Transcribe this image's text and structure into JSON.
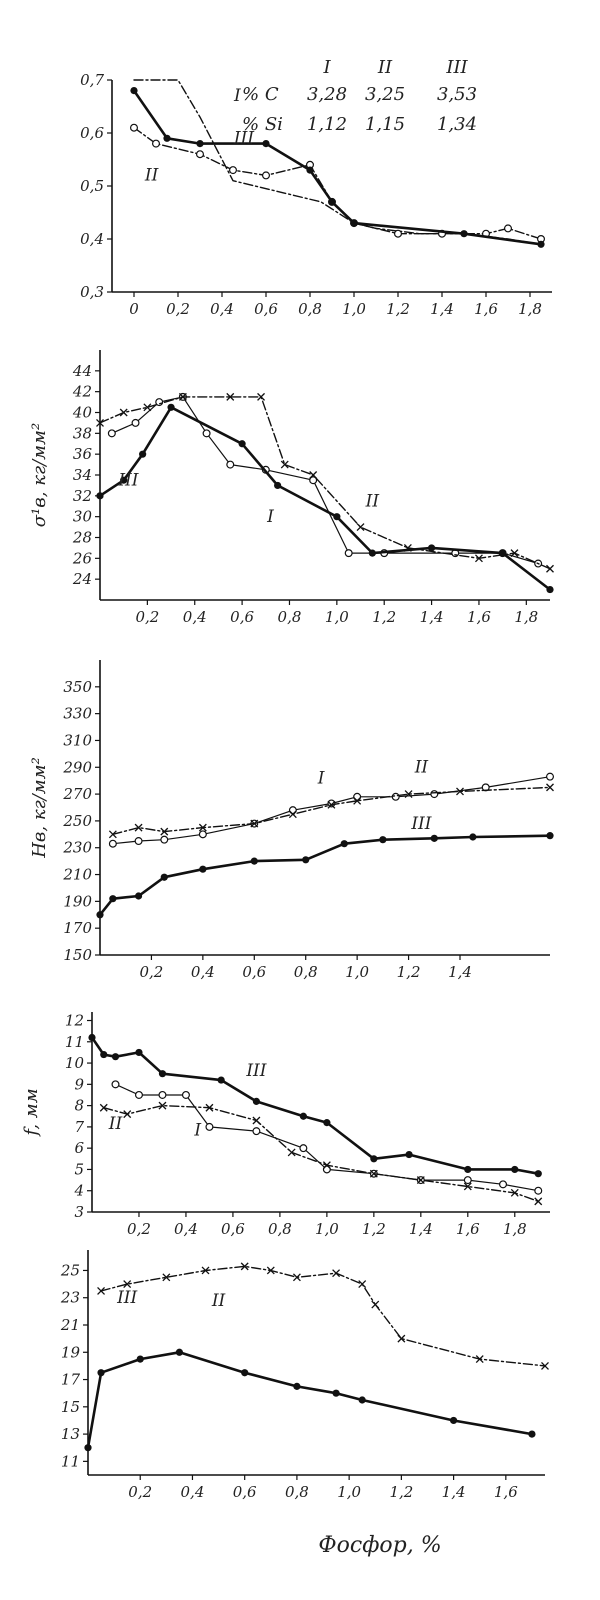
{
  "figure_xlabel": "Фосфор, %",
  "legend_table": {
    "rows": [
      {
        "id": "I",
        "c": "3,28",
        "si": "1,12"
      },
      {
        "id": "II",
        "c": "3,25",
        "si": "1,15"
      },
      {
        "id": "III",
        "c": "3,53",
        "si": "1,34"
      }
    ],
    "c_label": "% C",
    "si_label": "% Si"
  },
  "chart_data": [
    {
      "type": "line",
      "title": "",
      "ylabel": "",
      "xlim": [
        -0.1,
        1.9
      ],
      "ylim": [
        0.3,
        0.7
      ],
      "xticks": [
        "0",
        "0,2",
        "0,4",
        "0,6",
        "0,8",
        "1,0",
        "1,2",
        "1,4",
        "1,6",
        "1,8"
      ],
      "xtick_values": [
        0,
        0.2,
        0.4,
        0.6,
        0.8,
        1.0,
        1.2,
        1.4,
        1.6,
        1.8
      ],
      "yticks": [
        "0,7",
        "0,6",
        "0,5",
        "0,4",
        "0,3"
      ],
      "ytick_values": [
        0.7,
        0.6,
        0.5,
        0.4,
        0.3
      ],
      "curve_labels": [
        {
          "text": "I",
          "x": 0.47,
          "y": 0.66
        },
        {
          "text": "II",
          "x": 0.08,
          "y": 0.51
        },
        {
          "text": "III",
          "x": 0.5,
          "y": 0.58
        }
      ],
      "series": [
        {
          "name": "I",
          "style": "dashdot",
          "marker": "none",
          "x": [
            0.0,
            0.2,
            0.3,
            0.45,
            0.85,
            1.0,
            1.1,
            1.3,
            1.5,
            1.7,
            1.85
          ],
          "y": [
            0.7,
            0.7,
            0.63,
            0.51,
            0.47,
            0.43,
            0.42,
            0.41,
            0.41,
            0.4,
            0.39
          ]
        },
        {
          "name": "II",
          "style": "dashdot",
          "marker": "open",
          "x": [
            0.0,
            0.1,
            0.3,
            0.45,
            0.6,
            0.8,
            0.9,
            1.0,
            1.2,
            1.4,
            1.6,
            1.7,
            1.85
          ],
          "y": [
            0.61,
            0.58,
            0.56,
            0.53,
            0.52,
            0.54,
            0.47,
            0.43,
            0.41,
            0.41,
            0.41,
            0.42,
            0.4
          ]
        },
        {
          "name": "III",
          "style": "solid",
          "marker": "filled",
          "x": [
            0.0,
            0.15,
            0.3,
            0.6,
            0.8,
            0.9,
            1.0,
            1.5,
            1.85
          ],
          "y": [
            0.68,
            0.59,
            0.58,
            0.58,
            0.53,
            0.47,
            0.43,
            0.41,
            0.39
          ]
        }
      ]
    },
    {
      "type": "line",
      "title": "",
      "ylabel": "σ¹в, кг/мм²",
      "xlim": [
        0.0,
        1.9
      ],
      "ylim": [
        22,
        46
      ],
      "xticks": [
        "0,2",
        "0,4",
        "0,6",
        "0,8",
        "1,0",
        "1,2",
        "1,4",
        "1,6",
        "1,8"
      ],
      "xtick_values": [
        0.2,
        0.4,
        0.6,
        0.8,
        1.0,
        1.2,
        1.4,
        1.6,
        1.8
      ],
      "yticks": [
        "44",
        "42",
        "40",
        "38",
        "36",
        "34",
        "32",
        "30",
        "28",
        "26",
        "24"
      ],
      "ytick_values": [
        44,
        42,
        40,
        38,
        36,
        34,
        32,
        30,
        28,
        26,
        24
      ],
      "curve_labels": [
        {
          "text": "III",
          "x": 0.12,
          "y": 33.0
        },
        {
          "text": "II",
          "x": 1.15,
          "y": 31.0
        },
        {
          "text": "I",
          "x": 0.72,
          "y": 29.5
        }
      ],
      "series": [
        {
          "name": "I",
          "style": "thin",
          "marker": "open",
          "x": [
            0.05,
            0.15,
            0.25,
            0.35,
            0.45,
            0.55,
            0.7,
            0.9,
            1.05,
            1.2,
            1.5,
            1.7,
            1.85
          ],
          "y": [
            38.0,
            39.0,
            41.0,
            41.5,
            38.0,
            35.0,
            34.5,
            33.5,
            26.5,
            26.5,
            26.5,
            26.5,
            25.5
          ]
        },
        {
          "name": "II",
          "style": "dashdot",
          "marker": "cross",
          "x": [
            0.0,
            0.1,
            0.2,
            0.35,
            0.55,
            0.68,
            0.78,
            0.9,
            1.1,
            1.3,
            1.6,
            1.75,
            1.9
          ],
          "y": [
            39.0,
            40.0,
            40.5,
            41.5,
            41.5,
            41.5,
            35.0,
            34.0,
            29.0,
            27.0,
            26.0,
            26.5,
            25.0
          ]
        },
        {
          "name": "III",
          "style": "solid",
          "marker": "filled",
          "x": [
            0.0,
            0.1,
            0.18,
            0.3,
            0.6,
            0.75,
            1.0,
            1.15,
            1.4,
            1.7,
            1.9
          ],
          "y": [
            32.0,
            33.5,
            36.0,
            40.5,
            37.0,
            33.0,
            30.0,
            26.5,
            27.0,
            26.5,
            23.0
          ]
        }
      ]
    },
    {
      "type": "line",
      "title": "",
      "ylabel": "Hв, кг/мм²",
      "xlim": [
        0.0,
        1.75
      ],
      "ylim": [
        150,
        370
      ],
      "xticks": [
        "0,2",
        "0,4",
        "0,6",
        "0,8",
        "1,0",
        "1,2",
        "1,4"
      ],
      "xtick_values": [
        0.2,
        0.4,
        0.6,
        0.8,
        1.0,
        1.2,
        1.4
      ],
      "yticks": [
        "350",
        "330",
        "310",
        "290",
        "270",
        "250",
        "230",
        "210",
        "190",
        "170",
        "150"
      ],
      "ytick_values": [
        350,
        330,
        310,
        290,
        270,
        250,
        230,
        210,
        190,
        170,
        150
      ],
      "curve_labels": [
        {
          "text": "I",
          "x": 0.86,
          "y": 278
        },
        {
          "text": "II",
          "x": 1.25,
          "y": 286
        },
        {
          "text": "III",
          "x": 1.25,
          "y": 244
        }
      ],
      "series": [
        {
          "name": "I",
          "style": "thin",
          "marker": "open",
          "x": [
            0.05,
            0.15,
            0.25,
            0.4,
            0.6,
            0.75,
            0.9,
            1.0,
            1.15,
            1.3,
            1.5,
            1.75
          ],
          "y": [
            233,
            235,
            236,
            240,
            248,
            258,
            263,
            268,
            268,
            270,
            275,
            283
          ]
        },
        {
          "name": "II",
          "style": "dashdot",
          "marker": "cross",
          "x": [
            0.05,
            0.15,
            0.25,
            0.4,
            0.6,
            0.75,
            0.9,
            1.0,
            1.2,
            1.4,
            1.75
          ],
          "y": [
            240,
            245,
            242,
            245,
            248,
            255,
            262,
            265,
            270,
            272,
            275
          ]
        },
        {
          "name": "III",
          "style": "solid",
          "marker": "filled",
          "x": [
            0.0,
            0.05,
            0.15,
            0.25,
            0.4,
            0.6,
            0.8,
            0.95,
            1.1,
            1.3,
            1.45,
            1.75
          ],
          "y": [
            180,
            192,
            194,
            208,
            214,
            220,
            221,
            233,
            236,
            237,
            238,
            239
          ]
        }
      ]
    },
    {
      "type": "line",
      "title": "",
      "ylabel": "f, мм",
      "xlim": [
        0.0,
        1.95
      ],
      "ylim": [
        3,
        12.4
      ],
      "xticks": [
        "0,2",
        "0,4",
        "0,6",
        "0,8",
        "1,0",
        "1,2",
        "1,4",
        "1,6",
        "1,8"
      ],
      "xtick_values": [
        0.2,
        0.4,
        0.6,
        0.8,
        1.0,
        1.2,
        1.4,
        1.6,
        1.8
      ],
      "yticks": [
        "12",
        "11",
        "10",
        "9",
        "8",
        "7",
        "6",
        "5",
        "4",
        "3"
      ],
      "ytick_values": [
        12,
        11,
        10,
        9,
        8,
        7,
        6,
        5,
        4,
        3
      ],
      "curve_labels": [
        {
          "text": "III",
          "x": 0.7,
          "y": 9.4
        },
        {
          "text": "II",
          "x": 0.1,
          "y": 6.9
        },
        {
          "text": "I",
          "x": 0.45,
          "y": 6.6
        }
      ],
      "series": [
        {
          "name": "I",
          "style": "thin",
          "marker": "open",
          "x": [
            0.1,
            0.2,
            0.3,
            0.4,
            0.5,
            0.7,
            0.9,
            1.0,
            1.2,
            1.4,
            1.6,
            1.75,
            1.9
          ],
          "y": [
            9.0,
            8.5,
            8.5,
            8.5,
            7.0,
            6.8,
            6.0,
            5.0,
            4.8,
            4.5,
            4.5,
            4.3,
            4.0
          ]
        },
        {
          "name": "II",
          "style": "dashdot",
          "marker": "cross",
          "x": [
            0.05,
            0.15,
            0.3,
            0.5,
            0.7,
            0.85,
            1.0,
            1.2,
            1.4,
            1.6,
            1.8,
            1.9
          ],
          "y": [
            7.9,
            7.6,
            8.0,
            7.9,
            7.3,
            5.8,
            5.2,
            4.8,
            4.5,
            4.2,
            3.9,
            3.5
          ]
        },
        {
          "name": "III",
          "style": "solid",
          "marker": "filled",
          "x": [
            0.0,
            0.05,
            0.1,
            0.2,
            0.3,
            0.55,
            0.7,
            0.9,
            1.0,
            1.2,
            1.35,
            1.6,
            1.8,
            1.9
          ],
          "y": [
            11.2,
            10.4,
            10.3,
            10.5,
            9.5,
            9.2,
            8.2,
            7.5,
            7.2,
            5.5,
            5.7,
            5.0,
            5.0,
            4.8
          ]
        }
      ]
    },
    {
      "type": "line",
      "title": "",
      "ylabel": "",
      "xlim": [
        0.0,
        1.75
      ],
      "ylim": [
        10,
        26.5
      ],
      "xticks": [
        "0,2",
        "0,4",
        "0,6",
        "0,8",
        "1,0",
        "1,2",
        "1,4",
        "1,6"
      ],
      "xtick_values": [
        0.2,
        0.4,
        0.6,
        0.8,
        1.0,
        1.2,
        1.4,
        1.6
      ],
      "yticks": [
        "25",
        "23",
        "21",
        "19",
        "17",
        "15",
        "13",
        "11"
      ],
      "ytick_values": [
        25,
        23,
        21,
        19,
        17,
        15,
        13,
        11
      ],
      "curve_labels": [
        {
          "text": "II",
          "x": 0.5,
          "y": 22.4
        },
        {
          "text": "III",
          "x": 0.15,
          "y": 22.6
        }
      ],
      "series": [
        {
          "name": "II",
          "style": "dashdot",
          "marker": "cross",
          "x": [
            0.05,
            0.15,
            0.3,
            0.45,
            0.6,
            0.7,
            0.8,
            0.95,
            1.05,
            1.1,
            1.2,
            1.5,
            1.75
          ],
          "y": [
            23.5,
            24.0,
            24.5,
            25.0,
            25.3,
            25.0,
            24.5,
            24.8,
            24.0,
            22.5,
            20.0,
            18.5,
            18.0
          ]
        },
        {
          "name": "III",
          "style": "solid",
          "marker": "filled",
          "x": [
            0.0,
            0.05,
            0.2,
            0.35,
            0.6,
            0.8,
            0.95,
            1.05,
            1.4,
            1.7
          ],
          "y": [
            12.0,
            17.5,
            18.5,
            19.0,
            17.5,
            16.5,
            16.0,
            15.5,
            14.0,
            13.0
          ]
        }
      ]
    }
  ]
}
